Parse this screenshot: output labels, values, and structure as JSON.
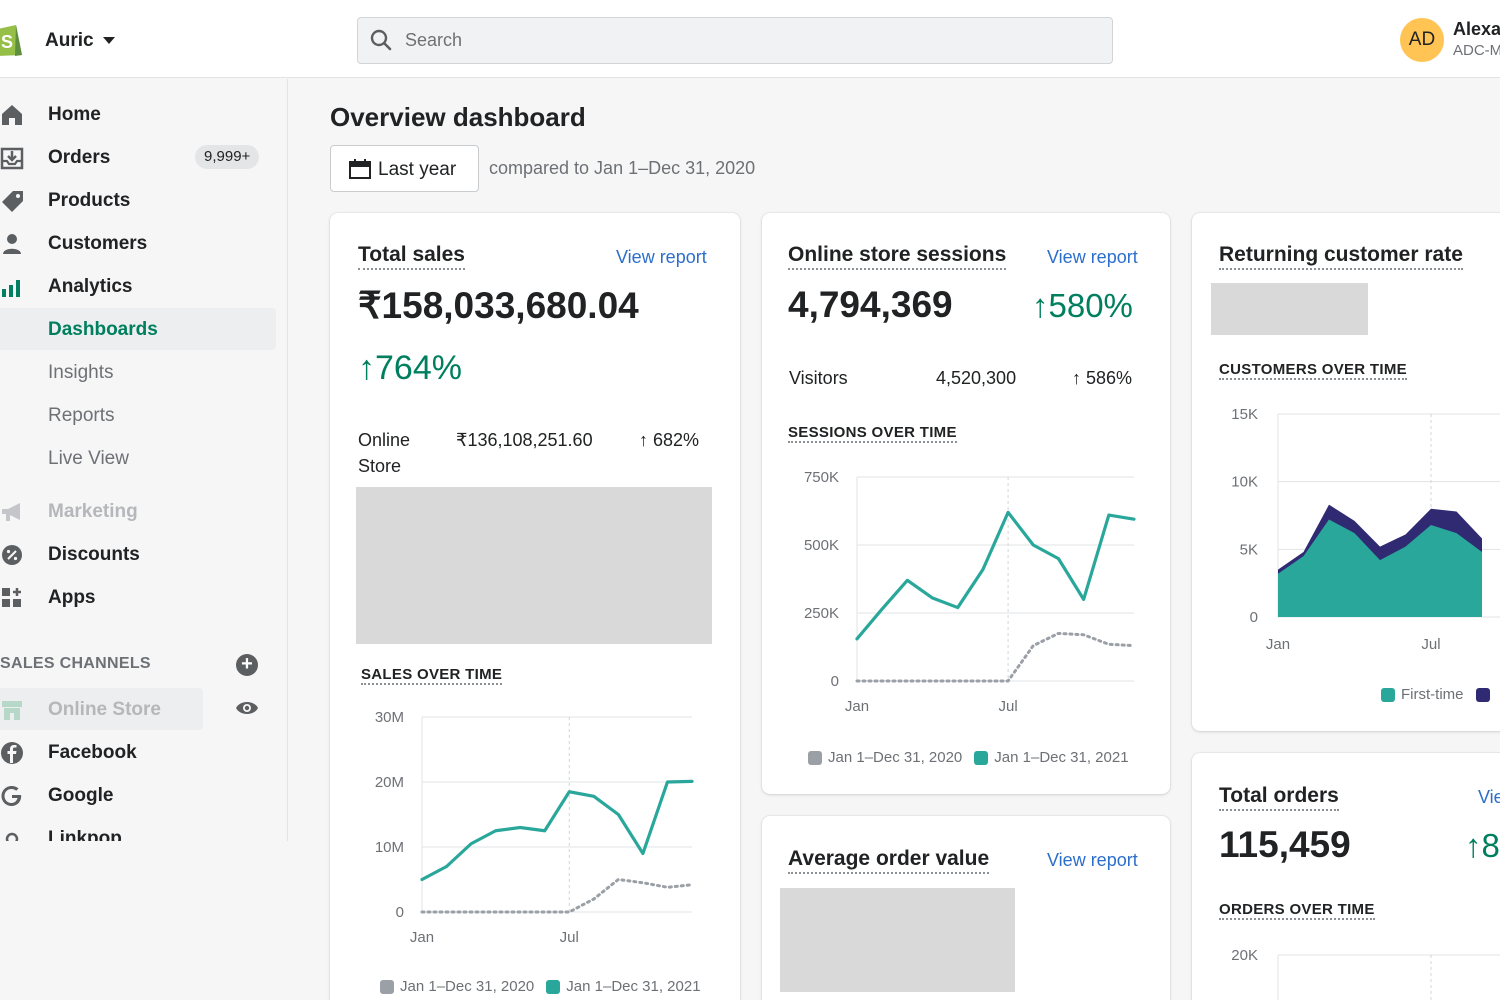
{
  "colors": {
    "accent_green": "#007f5f",
    "teal": "#2aa79b",
    "navy": "#2f2a72",
    "grey_series": "#9aa0a6",
    "link": "#2c6ecb"
  },
  "topbar": {
    "store_name": "Auric",
    "search_placeholder": "Search",
    "avatar_initials": "AD",
    "user_name": "Alexa",
    "user_shop": "ADC-M"
  },
  "sidebar": {
    "home": "Home",
    "orders": "Orders",
    "orders_badge": "9,999+",
    "products": "Products",
    "customers": "Customers",
    "analytics": "Analytics",
    "dashboards": "Dashboards",
    "insights": "Insights",
    "reports": "Reports",
    "live_view": "Live View",
    "marketing": "Marketing",
    "discounts": "Discounts",
    "apps": "Apps",
    "sales_channels_title": "SALES CHANNELS",
    "online_store": "Online Store",
    "facebook": "Facebook",
    "google": "Google",
    "linkpop": "Linkpop"
  },
  "main": {
    "title": "Overview dashboard",
    "date_button": "Last year",
    "compare_text": "compared to Jan 1–Dec 31, 2020"
  },
  "total_sales": {
    "title": "Total sales",
    "view_report": "View report",
    "value": "₹158,033,680.04",
    "growth": "↑764%",
    "row_label_1": "Online",
    "row_label_2": "Store",
    "row_value": "₹136,108,251.60",
    "row_growth": "↑ 682%",
    "chart_title": "SALES OVER TIME",
    "legend_prev": "Jan 1–Dec 31, 2020",
    "legend_curr": "Jan 1–Dec 31, 2021"
  },
  "sessions": {
    "title": "Online store sessions",
    "view_report": "View report",
    "value": "4,794,369",
    "growth": "↑580%",
    "visitors_label": "Visitors",
    "visitors_value": "4,520,300",
    "visitors_growth": "↑ 586%",
    "chart_title": "SESSIONS OVER TIME",
    "legend_prev": "Jan 1–Dec 31, 2020",
    "legend_curr": "Jan 1–Dec 31, 2021"
  },
  "returning": {
    "title": "Returning customer rate",
    "chart_title": "CUSTOMERS OVER TIME",
    "legend_first": "First-time"
  },
  "aov": {
    "title": "Average order value",
    "view_report": "View report"
  },
  "orders": {
    "title": "Total orders",
    "view_report": "Vie",
    "value": "115,459",
    "growth": "↑8",
    "chart_title": "ORDERS OVER TIME"
  },
  "chart_data": [
    {
      "type": "line",
      "title": "SALES OVER TIME",
      "x": [
        "Jan",
        "Feb",
        "Mar",
        "Apr",
        "May",
        "Jun",
        "Jul",
        "Aug",
        "Sep",
        "Oct",
        "Nov",
        "Dec"
      ],
      "x_tick_labels": [
        "Jan",
        "Jul"
      ],
      "y_ticks": [
        "0",
        "10M",
        "20M",
        "30M"
      ],
      "ylim": [
        0,
        30000000
      ],
      "series": [
        {
          "name": "Jan 1–Dec 31, 2021",
          "color": "#2aa79b",
          "style": "solid",
          "values": [
            5000000,
            7000000,
            10500000,
            12500000,
            13000000,
            12500000,
            18500000,
            17800000,
            15000000,
            9000000,
            20000000,
            20100000
          ]
        },
        {
          "name": "Jan 1–Dec 31, 2020",
          "color": "#9aa0a6",
          "style": "dotted",
          "values": [
            0,
            0,
            0,
            0,
            0,
            0,
            0,
            2000000,
            5000000,
            4500000,
            3800000,
            4200000
          ]
        }
      ]
    },
    {
      "type": "line",
      "title": "SESSIONS OVER TIME",
      "x": [
        "Jan",
        "Feb",
        "Mar",
        "Apr",
        "May",
        "Jun",
        "Jul",
        "Aug",
        "Sep",
        "Oct",
        "Nov",
        "Dec"
      ],
      "x_tick_labels": [
        "Jan",
        "Jul"
      ],
      "y_ticks": [
        "0",
        "250K",
        "500K",
        "750K"
      ],
      "ylim": [
        0,
        750000
      ],
      "series": [
        {
          "name": "Jan 1–Dec 31, 2021",
          "color": "#2aa79b",
          "style": "solid",
          "values": [
            155000,
            265000,
            370000,
            305000,
            270000,
            410000,
            620000,
            500000,
            450000,
            300000,
            610000,
            595000
          ]
        },
        {
          "name": "Jan 1–Dec 31, 2020",
          "color": "#9aa0a6",
          "style": "dotted",
          "values": [
            0,
            0,
            0,
            0,
            0,
            0,
            0,
            130000,
            175000,
            170000,
            135000,
            130000
          ]
        }
      ]
    },
    {
      "type": "area",
      "title": "CUSTOMERS OVER TIME",
      "x": [
        "Jan",
        "Feb",
        "Mar",
        "Apr",
        "May",
        "Jun",
        "Jul",
        "Aug",
        "Sep"
      ],
      "x_tick_labels": [
        "Jan",
        "Jul"
      ],
      "y_ticks": [
        "0",
        "5K",
        "10K",
        "15K"
      ],
      "ylim": [
        0,
        15000
      ],
      "series": [
        {
          "name": "First-time",
          "color": "#2aa79b",
          "values": [
            3200,
            4500,
            7200,
            6200,
            4200,
            5200,
            6800,
            6200,
            4800
          ]
        },
        {
          "color": "#2f2a72",
          "values": [
            3500,
            4800,
            8300,
            7100,
            5200,
            6100,
            8000,
            7800,
            5800
          ]
        }
      ]
    },
    {
      "type": "line",
      "title": "ORDERS OVER TIME",
      "y_ticks": [
        "20K"
      ],
      "series": []
    }
  ]
}
